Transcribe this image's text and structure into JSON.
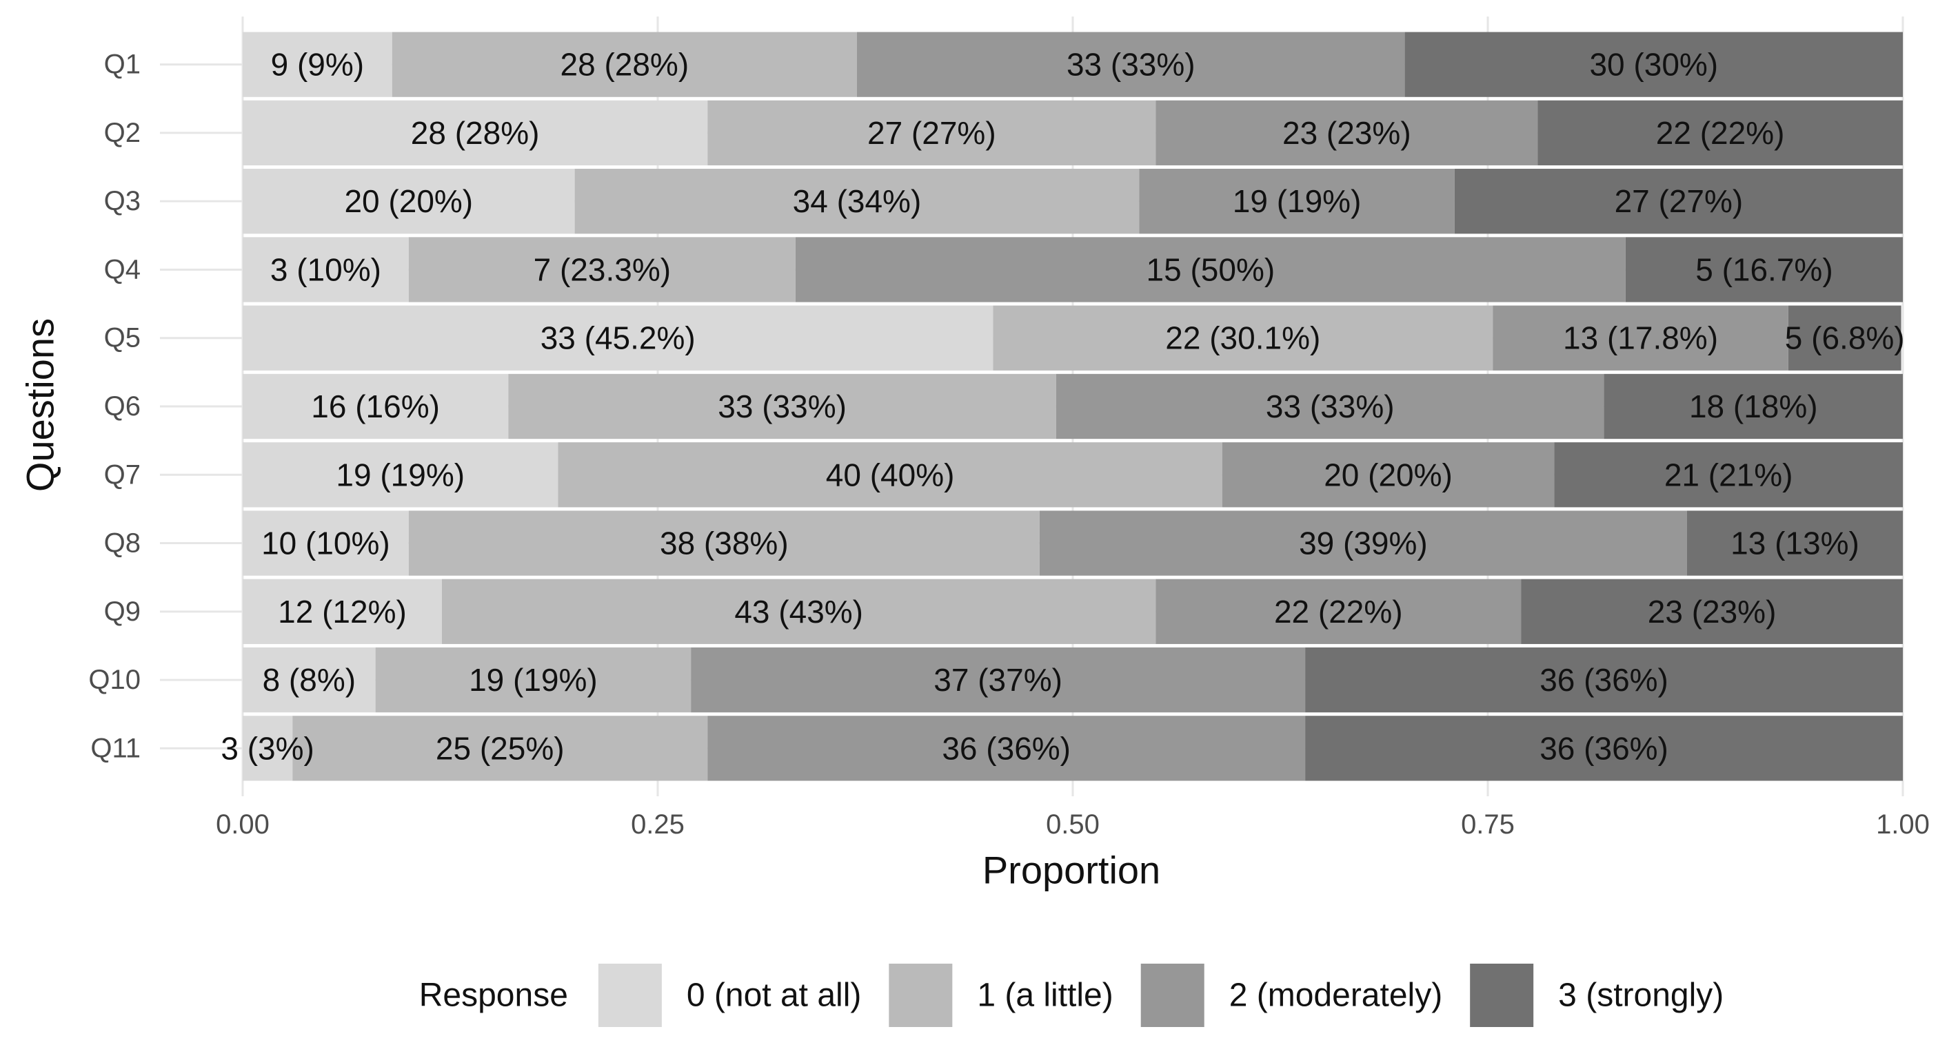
{
  "chart_data": {
    "type": "stacked-barh",
    "x_label": "Proportion",
    "y_label": "Questions",
    "legend_title": "Response",
    "legend_position": "bottom",
    "grid": true,
    "categories": [
      "Q1",
      "Q2",
      "Q3",
      "Q4",
      "Q5",
      "Q6",
      "Q7",
      "Q8",
      "Q9",
      "Q10",
      "Q11"
    ],
    "xlim": [
      0,
      1
    ],
    "xticks": [
      {
        "value": 0,
        "label": "0.00"
      },
      {
        "value": 0.25,
        "label": "0.25"
      },
      {
        "value": 0.5,
        "label": "0.50"
      },
      {
        "value": 0.75,
        "label": "0.75"
      },
      {
        "value": 1,
        "label": "1.00"
      }
    ],
    "series": [
      {
        "name": "0 (not at all)",
        "color": "#d9d9d9",
        "values": [
          0.09,
          0.28,
          0.2,
          0.1,
          0.452,
          0.16,
          0.19,
          0.1,
          0.12,
          0.08,
          0.03
        ],
        "value_labels": [
          "9 (9%)",
          "28 (28%)",
          "20 (20%)",
          "3 (10%)",
          "33 (45.2%)",
          "16 (16%)",
          "19 (19%)",
          "10 (10%)",
          "12 (12%)",
          "8 (8%)",
          "3 (3%)"
        ]
      },
      {
        "name": "1 (a little)",
        "color": "#bababa",
        "values": [
          0.28,
          0.27,
          0.34,
          0.233,
          0.301,
          0.33,
          0.4,
          0.38,
          0.43,
          0.19,
          0.25
        ],
        "value_labels": [
          "28 (28%)",
          "27 (27%)",
          "34 (34%)",
          "7 (23.3%)",
          "22 (30.1%)",
          "33 (33%)",
          "40 (40%)",
          "38 (38%)",
          "43 (43%)",
          "19 (19%)",
          "25 (25%)"
        ]
      },
      {
        "name": "2 (moderately)",
        "color": "#979797",
        "values": [
          0.33,
          0.23,
          0.19,
          0.5,
          0.178,
          0.33,
          0.2,
          0.39,
          0.22,
          0.37,
          0.36
        ],
        "value_labels": [
          "33 (33%)",
          "23 (23%)",
          "19 (19%)",
          "15 (50%)",
          "13 (17.8%)",
          "33 (33%)",
          "20 (20%)",
          "39 (39%)",
          "22 (22%)",
          "37 (37%)",
          "36 (36%)"
        ]
      },
      {
        "name": "3 (strongly)",
        "color": "#717171",
        "values": [
          0.3,
          0.22,
          0.27,
          0.167,
          0.068,
          0.18,
          0.21,
          0.13,
          0.23,
          0.36,
          0.36
        ],
        "value_labels": [
          "30 (30%)",
          "22 (22%)",
          "27 (27%)",
          "5 (16.7%)",
          "5 (6.8%)",
          "18 (18%)",
          "21 (21%)",
          "13 (13%)",
          "23 (23%)",
          "36 (36%)",
          "36 (36%)"
        ]
      }
    ]
  }
}
